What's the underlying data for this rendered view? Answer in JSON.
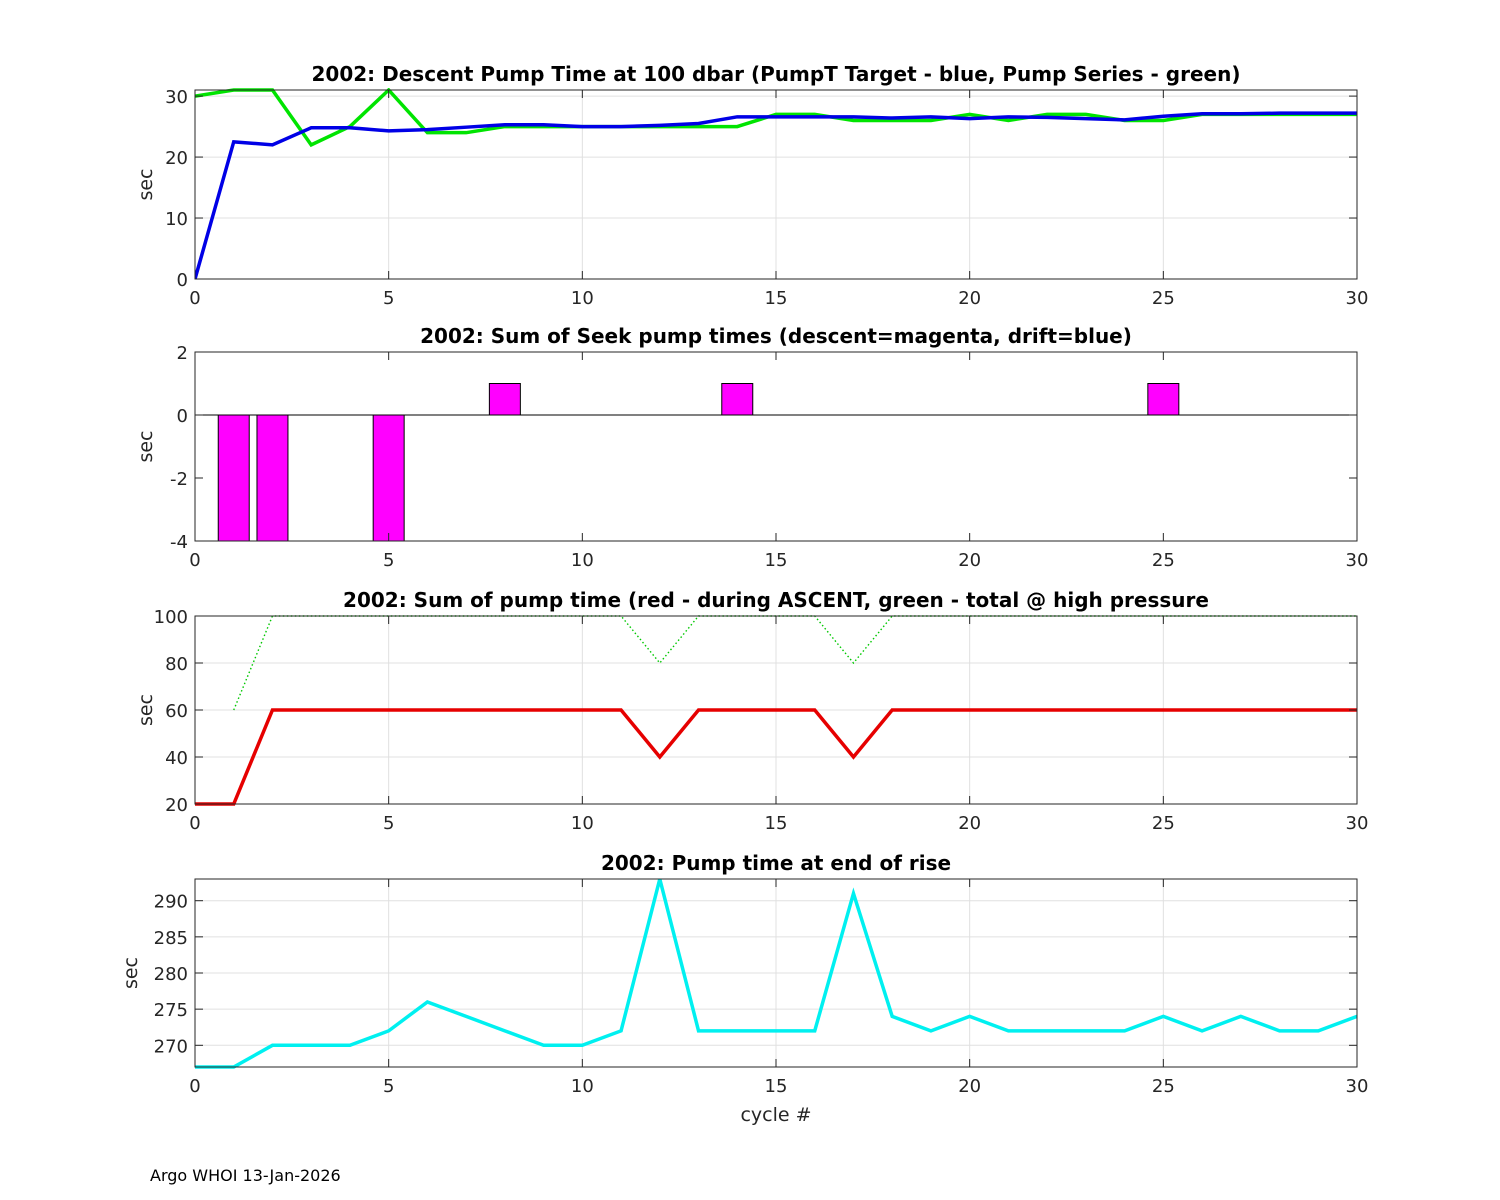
{
  "footer": "Argo WHOI 13-Jan-2026",
  "chart_data": [
    {
      "type": "line",
      "title": "2002: Descent Pump Time at 100 dbar (PumpT Target - blue, Pump Series - green)",
      "xlabel": "",
      "ylabel": "sec",
      "xlim": [
        0,
        30
      ],
      "ylim": [
        0,
        31
      ],
      "xticks": [
        0,
        5,
        10,
        15,
        20,
        25,
        30
      ],
      "yticks": [
        0,
        10,
        20,
        30
      ],
      "grid": true,
      "series": [
        {
          "name": "Pump Series",
          "color": "#00e400",
          "style": "solid",
          "x": [
            0,
            1,
            2,
            3,
            4,
            5,
            6,
            7,
            8,
            9,
            10,
            11,
            12,
            13,
            14,
            15,
            16,
            17,
            18,
            19,
            20,
            21,
            22,
            23,
            24,
            25,
            26,
            27,
            28,
            29,
            30
          ],
          "y": [
            30,
            31,
            31,
            22,
            25,
            31,
            24,
            24,
            25,
            25,
            25,
            25,
            25,
            25,
            25,
            27,
            27,
            26,
            26,
            26,
            27,
            26,
            27,
            27,
            26,
            26,
            27,
            27,
            27,
            27,
            27
          ]
        },
        {
          "name": "PumpT Target",
          "color": "#0000e6",
          "style": "solid",
          "x": [
            0,
            1,
            2,
            3,
            4,
            5,
            6,
            7,
            8,
            9,
            10,
            11,
            12,
            13,
            14,
            15,
            16,
            17,
            18,
            19,
            20,
            21,
            22,
            23,
            24,
            25,
            26,
            27,
            28,
            29,
            30
          ],
          "y": [
            0,
            22.5,
            22,
            24.8,
            24.8,
            24.3,
            24.5,
            24.9,
            25.3,
            25.3,
            25.0,
            25.0,
            25.2,
            25.5,
            26.6,
            26.6,
            26.6,
            26.6,
            26.4,
            26.6,
            26.3,
            26.6,
            26.5,
            26.3,
            26.1,
            26.7,
            27.1,
            27.1,
            27.2,
            27.2,
            27.2
          ]
        }
      ]
    },
    {
      "type": "bar",
      "title": "2002: Sum of Seek pump times (descent=magenta, drift=blue)",
      "xlabel": "",
      "ylabel": "sec",
      "xlim": [
        0,
        30
      ],
      "ylim": [
        -4,
        2
      ],
      "xticks": [
        0,
        5,
        10,
        15,
        20,
        25,
        30
      ],
      "yticks": [
        -4,
        -2,
        0,
        2
      ],
      "grid": false,
      "series": [
        {
          "name": "descent",
          "color": "#ff00ff",
          "x": [
            1,
            2,
            5,
            8,
            14,
            25
          ],
          "values": [
            -4,
            -4,
            -4,
            1,
            1,
            1
          ]
        },
        {
          "name": "drift",
          "color": "#0000ff",
          "x": [],
          "values": []
        }
      ]
    },
    {
      "type": "line",
      "title": "2002: Sum of pump time (red - during ASCENT, green - total @ high pressure",
      "xlabel": "",
      "ylabel": "sec",
      "xlim": [
        0,
        30
      ],
      "ylim": [
        20,
        100
      ],
      "xticks": [
        0,
        5,
        10,
        15,
        20,
        25,
        30
      ],
      "yticks": [
        20,
        40,
        60,
        80,
        100
      ],
      "grid": true,
      "series": [
        {
          "name": "ASCENT",
          "color": "#e60000",
          "style": "solid",
          "x": [
            0,
            1,
            2,
            3,
            4,
            5,
            6,
            7,
            8,
            9,
            10,
            11,
            12,
            13,
            14,
            15,
            16,
            17,
            18,
            19,
            20,
            21,
            22,
            23,
            24,
            25,
            26,
            27,
            28,
            29,
            30
          ],
          "y": [
            20,
            20,
            60,
            60,
            60,
            60,
            60,
            60,
            60,
            60,
            60,
            60,
            40,
            60,
            60,
            60,
            60,
            40,
            60,
            60,
            60,
            60,
            60,
            60,
            60,
            60,
            60,
            60,
            60,
            60,
            60
          ]
        },
        {
          "name": "total @ high pressure",
          "color": "#00c800",
          "style": "dotted",
          "x": [
            1,
            2,
            3,
            4,
            5,
            6,
            7,
            8,
            9,
            10,
            11,
            12,
            13,
            14,
            15,
            16,
            17,
            18,
            19,
            20,
            21,
            22,
            23,
            24,
            25,
            26,
            27,
            28,
            29,
            30
          ],
          "y": [
            60,
            100,
            100,
            100,
            100,
            100,
            100,
            100,
            100,
            100,
            100,
            80,
            100,
            100,
            100,
            100,
            80,
            100,
            100,
            100,
            100,
            100,
            100,
            100,
            100,
            100,
            100,
            100,
            100,
            100
          ]
        }
      ]
    },
    {
      "type": "line",
      "title": "2002: Pump time at end of rise",
      "xlabel": "cycle #",
      "ylabel": "sec",
      "xlim": [
        0,
        30
      ],
      "ylim": [
        267,
        293
      ],
      "xticks": [
        0,
        5,
        10,
        15,
        20,
        25,
        30
      ],
      "yticks": [
        270,
        275,
        280,
        285,
        290
      ],
      "grid": true,
      "series": [
        {
          "name": "end of rise",
          "color": "#00f0f0",
          "style": "solid",
          "x": [
            0,
            1,
            2,
            3,
            4,
            5,
            6,
            7,
            8,
            9,
            10,
            11,
            12,
            13,
            14,
            15,
            16,
            17,
            18,
            19,
            20,
            21,
            22,
            23,
            24,
            25,
            26,
            27,
            28,
            29,
            30
          ],
          "y": [
            267,
            267,
            270,
            270,
            270,
            272,
            276,
            274,
            272,
            270,
            270,
            272,
            293,
            272,
            272,
            272,
            272,
            291,
            274,
            272,
            274,
            272,
            272,
            272,
            272,
            274,
            272,
            274,
            272,
            272,
            274
          ]
        }
      ]
    }
  ]
}
